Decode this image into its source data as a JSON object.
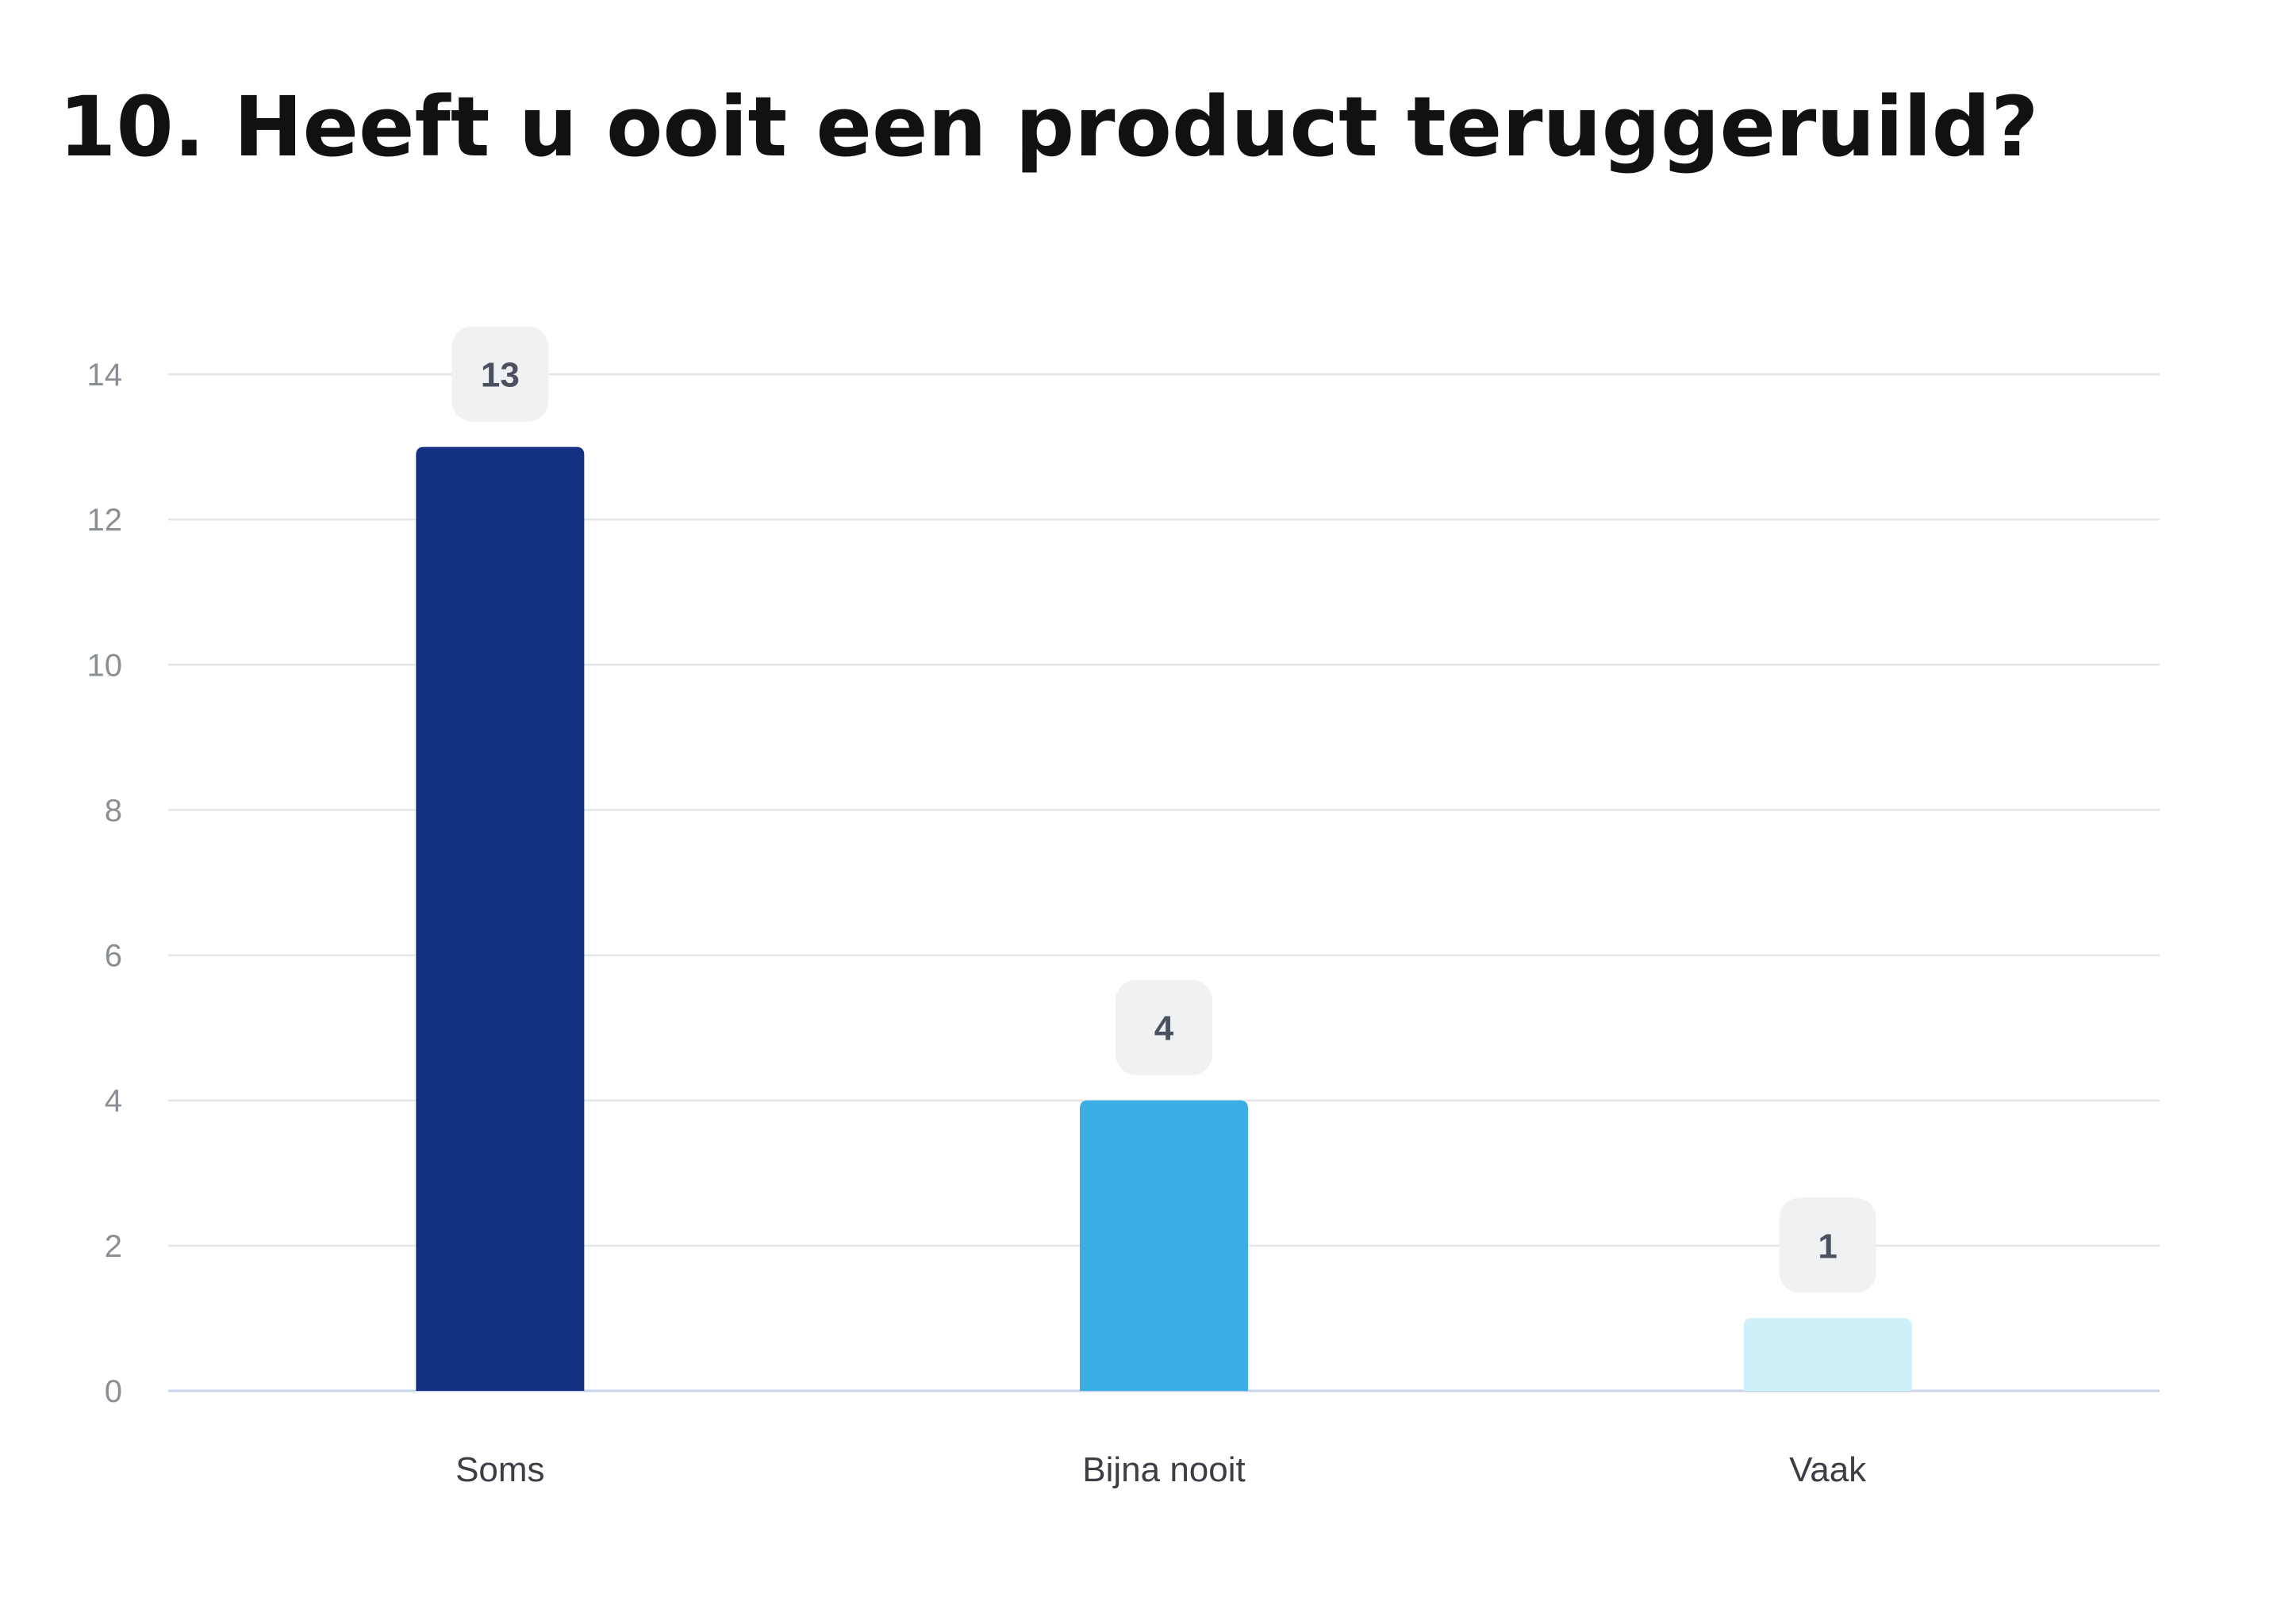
{
  "chart_data": {
    "type": "bar",
    "title": "10. Heeft u ooit een product teruggeruild?",
    "xlabel": "",
    "ylabel": "",
    "categories": [
      "Soms",
      "Bijna nooit",
      "Vaak"
    ],
    "values": [
      13,
      4,
      1
    ],
    "data_labels": [
      "13",
      "4",
      "1"
    ],
    "yticks": [
      "0",
      "2",
      "4",
      "6",
      "8",
      "10",
      "12",
      "14"
    ],
    "ylim": [
      0,
      14
    ],
    "grid": true,
    "legend": "none",
    "colors": [
      "#133182",
      "#3aaee5",
      "#cdf0f9"
    ]
  }
}
